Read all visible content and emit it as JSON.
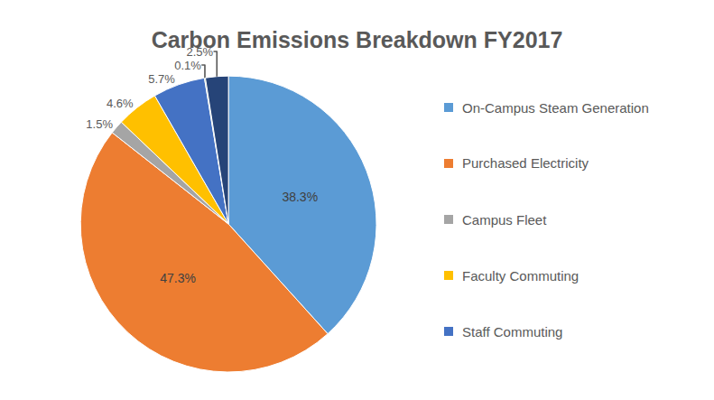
{
  "chart_data": {
    "type": "pie",
    "title": "Carbon Emissions Breakdown FY2017",
    "categories": [
      "On-Campus Steam Generation",
      "Purchased Electricity",
      "Campus Fleet",
      "Faculty Commuting",
      "Staff Commuting",
      null,
      null
    ],
    "values": [
      38.3,
      47.3,
      1.5,
      4.6,
      5.7,
      0.1,
      2.5
    ],
    "value_labels": [
      "38.3%",
      "47.3%",
      "1.5%",
      "4.6%",
      "5.7%",
      "0.1%",
      "2.5%"
    ],
    "colors": [
      "#5b9bd5",
      "#ed7d31",
      "#a5a5a5",
      "#ffc000",
      "#4472c4",
      "#70ad47",
      "#264478"
    ],
    "data_labels": true,
    "legend": "right"
  }
}
